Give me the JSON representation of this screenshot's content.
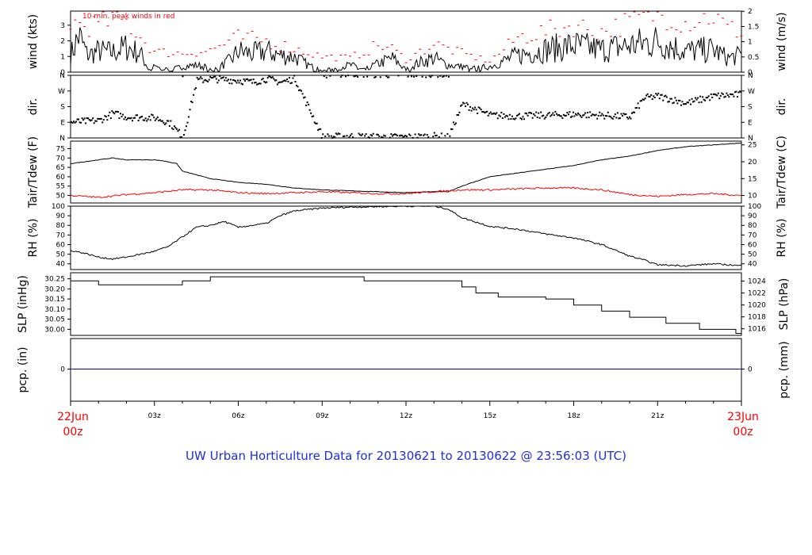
{
  "caption": "UW Urban Horticulture Data for 20130621  to  20130622 @ 23:56:03  (UTC)",
  "colors": {
    "axis": "#000000",
    "peak": "#ff0000",
    "dew": "#ff0000",
    "precip": "#0000cc",
    "caption": "#1e2ee0",
    "date": "#ff0000"
  },
  "time_axis": {
    "ticks": [
      "03z",
      "06z",
      "09z",
      "12z",
      "15z",
      "18z",
      "21z"
    ],
    "start": [
      "22Jun",
      "00z"
    ],
    "end": [
      "23Jun",
      "00z"
    ]
  },
  "chart_data": [
    {
      "type": "line",
      "id": "wind",
      "left_label": "wind (kts)",
      "right_label": "wind (m/s)",
      "annotation": "10 min. peak winds in red",
      "ylim": [
        0,
        3.9
      ],
      "left_ticks": [
        "0",
        "1",
        "2",
        "3"
      ],
      "right_ticks": [
        "0",
        "0.5",
        "1",
        "1.5",
        "2"
      ],
      "series": [
        {
          "x_hours": [
            0,
            0.3,
            0.6,
            1,
            1.5,
            2,
            2.5,
            2.8,
            3,
            3.5,
            4,
            4.5,
            5,
            5.3,
            5.8,
            6,
            6.5,
            7,
            7.5,
            8,
            8.5,
            9,
            9.5,
            10,
            10.5,
            11,
            11.5,
            12,
            12.5,
            13,
            13.5,
            14,
            14.5,
            15,
            15.5,
            16,
            17,
            18,
            19,
            20,
            21,
            22,
            23,
            23.5,
            24
          ],
          "values": [
            1.2,
            2.6,
            1.2,
            1.5,
            1.4,
            1.8,
            1.3,
            0.2,
            0.4,
            0.2,
            0.4,
            0.5,
            0.3,
            0.3,
            1.0,
            1.5,
            1.3,
            1.5,
            1.2,
            1.1,
            0.5,
            0.1,
            0.3,
            0.5,
            0.2,
            0.6,
            1.0,
            0.2,
            0.7,
            1.0,
            0.5,
            0.4,
            0.3,
            0.4,
            0.8,
            1.2,
            1.6,
            1.9,
            1.6,
            1.9,
            2.2,
            1.5,
            1.6,
            1.0,
            1.2
          ]
        },
        {
          "name": "10 min. peak winds",
          "x_hours": [
            0,
            0.5,
            1,
            1.5,
            2,
            3,
            4,
            5,
            6,
            7,
            8,
            9,
            10,
            11,
            11.5,
            12,
            13,
            14,
            15,
            16,
            17,
            18,
            19,
            20,
            21,
            22,
            23,
            23.5,
            24
          ],
          "values": [
            3.2,
            3.0,
            3.0,
            3.4,
            3.2,
            1.3,
            1.2,
            1.4,
            2.2,
            2.0,
            1.5,
            1.0,
            0.9,
            1.7,
            1.5,
            0.8,
            1.8,
            1.2,
            0.7,
            2.2,
            2.6,
            3.0,
            2.6,
            3.2,
            3.8,
            3.2,
            3.6,
            2.8,
            2.6
          ]
        }
      ]
    },
    {
      "type": "scatter",
      "id": "dir",
      "left_label": "dir.",
      "right_label": "dir.",
      "ylim": [
        0,
        360
      ],
      "left_ticks": [
        "N",
        "E",
        "S",
        "W",
        "N"
      ],
      "right_ticks": [
        "N",
        "E",
        "S",
        "W",
        "N"
      ],
      "series": [
        {
          "x_hours": [
            0,
            1,
            1.5,
            2,
            3,
            3.5,
            4,
            4.5,
            5,
            6,
            6.5,
            7,
            7.5,
            8,
            9,
            10,
            11,
            12,
            13,
            13.5,
            14,
            15,
            16,
            17,
            18,
            19,
            20,
            20.5,
            21,
            22,
            23,
            24
          ],
          "values": [
            90,
            100,
            140,
            120,
            115,
            90,
            5,
            330,
            340,
            330,
            320,
            340,
            320,
            340,
            5,
            10,
            5,
            5,
            10,
            5,
            195,
            130,
            125,
            130,
            135,
            130,
            120,
            230,
            240,
            200,
            240,
            250
          ]
        }
      ]
    },
    {
      "type": "line",
      "id": "temp",
      "left_label": "Tair/Tdew (F)",
      "right_label": "Tair/Tdew (C)",
      "ylim": [
        46,
        79
      ],
      "left_ticks": [
        "50",
        "55",
        "60",
        "65",
        "70",
        "75"
      ],
      "right_ticks": [
        "10",
        "15",
        "20",
        "25"
      ],
      "series": [
        {
          "x_hours": [
            0,
            1,
            1.5,
            2,
            3,
            3.3,
            3.8,
            4,
            4.5,
            5,
            6,
            7,
            8,
            9,
            10,
            11,
            12,
            13,
            13.5,
            14,
            15,
            16,
            17,
            18,
            19,
            20,
            21,
            22,
            23,
            24
          ],
          "values": [
            67,
            69,
            70,
            69,
            69,
            68.5,
            67,
            63,
            61,
            59,
            57,
            56,
            54,
            53,
            52.5,
            52,
            51.5,
            52,
            52,
            55,
            60,
            62,
            64,
            66,
            69,
            71,
            74,
            76,
            77,
            78
          ]
        },
        {
          "x_hours": [
            0,
            1,
            2,
            3,
            4,
            5,
            6,
            7,
            8,
            9,
            10,
            11,
            12,
            13,
            14,
            15,
            16,
            17,
            18,
            19,
            20,
            21,
            22,
            23,
            24
          ],
          "values": [
            50,
            49,
            50.5,
            51.5,
            53,
            53,
            51.5,
            51,
            51.5,
            52,
            51.5,
            51,
            51,
            52,
            53,
            53,
            53.5,
            54,
            54,
            53,
            50.5,
            49.5,
            50.5,
            51,
            50
          ]
        }
      ]
    },
    {
      "type": "line",
      "id": "rh",
      "left_label": "RH (%)",
      "right_label": "RH (%)",
      "ylim": [
        34,
        100
      ],
      "left_ticks": [
        "40",
        "50",
        "60",
        "70",
        "80",
        "90",
        "100"
      ],
      "right_ticks": [
        "40",
        "50",
        "60",
        "70",
        "80",
        "90",
        "100"
      ],
      "series": [
        {
          "x_hours": [
            0,
            0.5,
            1,
            1.5,
            2,
            3,
            3.5,
            4,
            4.5,
            5,
            5.5,
            6,
            6.5,
            7,
            7.5,
            8,
            9,
            10,
            11,
            12,
            13,
            13.5,
            14,
            15,
            16,
            17,
            18,
            19,
            20,
            20.5,
            21,
            22,
            23,
            24
          ],
          "values": [
            54,
            51,
            47,
            45,
            47,
            53,
            58,
            68,
            78,
            80,
            84,
            78,
            80,
            82,
            90,
            95,
            98,
            99,
            99.5,
            100,
            100,
            97,
            88,
            79,
            76,
            71,
            67,
            60,
            48,
            44,
            39,
            38,
            40,
            38
          ]
        }
      ]
    },
    {
      "type": "line",
      "id": "slp",
      "left_label": "SLP (inHg)",
      "right_label": "SLP (hPa)",
      "step": true,
      "ylim": [
        29.97,
        30.28
      ],
      "left_ticks": [
        "30.00",
        "30.05",
        "30.10",
        "30.15",
        "30.20",
        "30.25"
      ],
      "right_ticks": [
        "1016",
        "1018",
        "1020",
        "1022",
        "1024"
      ],
      "series": [
        {
          "x_hours": [
            0,
            1,
            4,
            5,
            10.5,
            14,
            14.5,
            15.3,
            17,
            18,
            19,
            20,
            21.3,
            22.5,
            23.8
          ],
          "values": [
            30.24,
            30.22,
            30.24,
            30.26,
            30.24,
            30.21,
            30.18,
            30.16,
            30.15,
            30.12,
            30.09,
            30.06,
            30.03,
            30.0,
            29.98
          ]
        }
      ]
    },
    {
      "type": "line",
      "id": "pcp",
      "left_label": "pcp. (in)",
      "right_label": "pcp. (mm)",
      "left_ticks": [
        "0"
      ],
      "right_ticks": [
        "0"
      ],
      "series": [
        {
          "x_hours": [
            0,
            24
          ],
          "values": [
            0,
            0
          ]
        }
      ]
    }
  ]
}
